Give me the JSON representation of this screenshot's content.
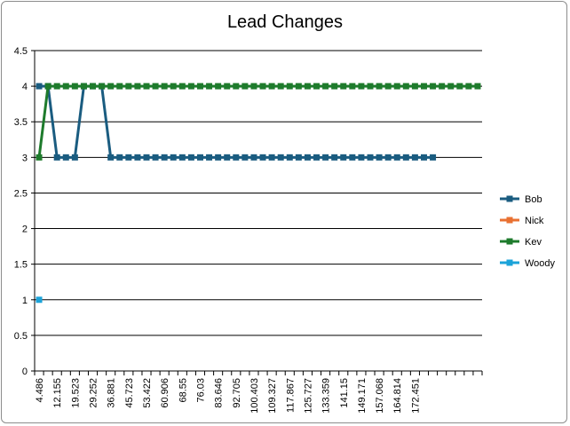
{
  "chart_data": {
    "type": "line",
    "title": "Lead Changes",
    "xlabel": "",
    "ylabel": "",
    "ylim": [
      0,
      4.5
    ],
    "y_ticks": [
      "0",
      "0.5",
      "1",
      "1.5",
      "2",
      "2.5",
      "3",
      "3.5",
      "4",
      "4.5"
    ],
    "grid": "horizontal",
    "legend_position": "right",
    "x_tick_labels": [
      "4.486",
      "12.155",
      "19.523",
      "29.252",
      "36.881",
      "45.723",
      "53.422",
      "60.906",
      "68.55",
      "76.03",
      "83.646",
      "92.705",
      "100.403",
      "109.327",
      "117.867",
      "125.727",
      "133.359",
      "141.15",
      "149.171",
      "157.068",
      "164.814",
      "172.451"
    ],
    "num_categories": 50,
    "series": [
      {
        "name": "Bob",
        "color": "#1a5c80",
        "values": [
          4,
          4,
          3,
          3,
          3,
          4,
          4,
          4,
          3,
          3,
          3,
          3,
          3,
          3,
          3,
          3,
          3,
          3,
          3,
          3,
          3,
          3,
          3,
          3,
          3,
          3,
          3,
          3,
          3,
          3,
          3,
          3,
          3,
          3,
          3,
          3,
          3,
          3,
          3,
          3,
          3,
          3,
          3,
          3,
          3
        ]
      },
      {
        "name": "Nick",
        "color": "#e97132",
        "values": []
      },
      {
        "name": "Kev",
        "color": "#1e7b2c",
        "values": [
          3,
          4,
          4,
          4,
          4,
          4,
          4,
          4,
          4,
          4,
          4,
          4,
          4,
          4,
          4,
          4,
          4,
          4,
          4,
          4,
          4,
          4,
          4,
          4,
          4,
          4,
          4,
          4,
          4,
          4,
          4,
          4,
          4,
          4,
          4,
          4,
          4,
          4,
          4,
          4,
          4,
          4,
          4,
          4,
          4,
          4,
          4,
          4,
          4,
          4
        ]
      },
      {
        "name": "Woody",
        "color": "#1ba3d9",
        "values": [
          1
        ]
      }
    ]
  }
}
